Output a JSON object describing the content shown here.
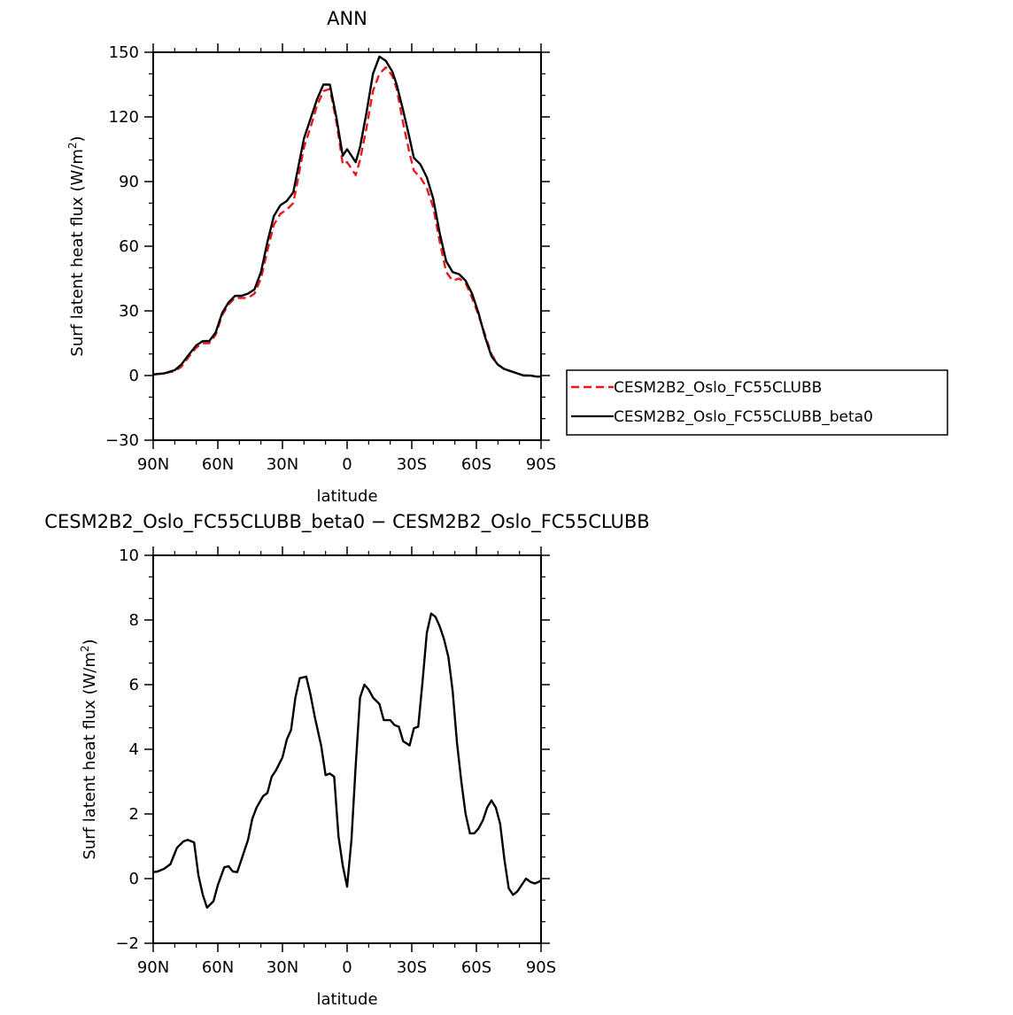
{
  "chart_data": [
    {
      "type": "line",
      "title": "ANN",
      "xlabel": "latitude",
      "ylabel": "Surf latent heat flux (W/m",
      "ylabel_sup": "2",
      "ylabel_close": ")",
      "xlim": [
        90,
        -90
      ],
      "ylim": [
        -30,
        150
      ],
      "yticks": [
        -30,
        0,
        30,
        60,
        90,
        120,
        150
      ],
      "ytick_labels": [
        "−30",
        "0",
        "30",
        "60",
        "90",
        "120",
        "150"
      ],
      "xticks": [
        90,
        60,
        30,
        0,
        -30,
        -60,
        -90
      ],
      "xtick_labels": [
        "90N",
        "60N",
        "30N",
        "0",
        "30S",
        "60S",
        "90S"
      ],
      "legend_position": "right",
      "series": [
        {
          "name": "CESM2B2_Oslo_FC55CLUBB",
          "color": "#e8191d",
          "dash": "dashed",
          "points": [
            [
              90,
              0.5
            ],
            [
              85,
              1
            ],
            [
              80,
              2
            ],
            [
              77,
              4
            ],
            [
              74,
              8
            ],
            [
              70,
              13
            ],
            [
              67,
              15
            ],
            [
              64,
              15
            ],
            [
              61,
              19
            ],
            [
              58,
              28
            ],
            [
              55,
              33
            ],
            [
              52,
              36
            ],
            [
              49,
              36
            ],
            [
              46,
              36
            ],
            [
              43,
              38
            ],
            [
              40,
              45
            ],
            [
              37,
              58
            ],
            [
              34,
              70
            ],
            [
              31,
              75
            ],
            [
              28,
              77
            ],
            [
              25,
              80
            ],
            [
              23,
              90
            ],
            [
              20,
              106
            ],
            [
              17,
              115
            ],
            [
              14,
              125
            ],
            [
              11,
              132
            ],
            [
              8,
              133
            ],
            [
              5,
              118
            ],
            [
              2,
              98
            ],
            [
              0,
              99
            ],
            [
              -2,
              96
            ],
            [
              -4,
              93
            ],
            [
              -6,
              100
            ],
            [
              -9,
              115
            ],
            [
              -12,
              132
            ],
            [
              -15,
              140
            ],
            [
              -18,
              143
            ],
            [
              -21,
              139
            ],
            [
              -23,
              133
            ],
            [
              -26,
              117
            ],
            [
              -29,
              103
            ],
            [
              -31,
              95
            ],
            [
              -34,
              92
            ],
            [
              -37,
              87
            ],
            [
              -40,
              78
            ],
            [
              -43,
              62
            ],
            [
              -46,
              48
            ],
            [
              -49,
              44
            ],
            [
              -52,
              45
            ],
            [
              -55,
              43
            ],
            [
              -58,
              36
            ],
            [
              -61,
              28
            ],
            [
              -64,
              19
            ],
            [
              -67,
              10
            ],
            [
              -70,
              5
            ],
            [
              -73,
              3
            ],
            [
              -76,
              2
            ],
            [
              -79,
              1
            ],
            [
              -82,
              0
            ],
            [
              -85,
              0
            ],
            [
              -88,
              -0.5
            ],
            [
              -90,
              -0.5
            ]
          ]
        },
        {
          "name": "CESM2B2_Oslo_FC55CLUBB_beta0",
          "color": "#000000",
          "dash": "solid",
          "points": [
            [
              90,
              0.5
            ],
            [
              85,
              1
            ],
            [
              80,
              2.5
            ],
            [
              77,
              5
            ],
            [
              74,
              9
            ],
            [
              70,
              14
            ],
            [
              67,
              16
            ],
            [
              64,
              16
            ],
            [
              61,
              20
            ],
            [
              58,
              29
            ],
            [
              55,
              34
            ],
            [
              52,
              37
            ],
            [
              49,
              37
            ],
            [
              46,
              38
            ],
            [
              43,
              40
            ],
            [
              40,
              48
            ],
            [
              37,
              62
            ],
            [
              34,
              74
            ],
            [
              31,
              79
            ],
            [
              28,
              81
            ],
            [
              25,
              85
            ],
            [
              23,
              95
            ],
            [
              20,
              110
            ],
            [
              17,
              119
            ],
            [
              14,
              128
            ],
            [
              11,
              135
            ],
            [
              8,
              135
            ],
            [
              5,
              120
            ],
            [
              2,
              102
            ],
            [
              0,
              105
            ],
            [
              -2,
              102
            ],
            [
              -4,
              99
            ],
            [
              -6,
              106
            ],
            [
              -9,
              122
            ],
            [
              -12,
              140
            ],
            [
              -15,
              148
            ],
            [
              -18,
              146
            ],
            [
              -21,
              141
            ],
            [
              -23,
              135
            ],
            [
              -26,
              123
            ],
            [
              -29,
              110
            ],
            [
              -31,
              101
            ],
            [
              -34,
              98
            ],
            [
              -37,
              92
            ],
            [
              -40,
              82
            ],
            [
              -43,
              66
            ],
            [
              -46,
              53
            ],
            [
              -49,
              48
            ],
            [
              -52,
              47
            ],
            [
              -55,
              44
            ],
            [
              -58,
              38
            ],
            [
              -61,
              29
            ],
            [
              -64,
              18
            ],
            [
              -67,
              9
            ],
            [
              -70,
              5
            ],
            [
              -73,
              3
            ],
            [
              -76,
              2
            ],
            [
              -79,
              1
            ],
            [
              -82,
              0
            ],
            [
              -85,
              0
            ],
            [
              -88,
              -0.5
            ],
            [
              -90,
              -0.5
            ]
          ]
        }
      ]
    },
    {
      "type": "line",
      "title": "CESM2B2_Oslo_FC55CLUBB_beta0 − CESM2B2_Oslo_FC55CLUBB",
      "xlabel": "latitude",
      "ylabel": "Surf latent heat flux (W/m",
      "ylabel_sup": "2",
      "ylabel_close": ")",
      "xlim": [
        90,
        -90
      ],
      "ylim": [
        -2,
        10
      ],
      "yticks": [
        -2,
        0,
        2,
        4,
        6,
        8,
        10
      ],
      "ytick_labels": [
        "−2",
        "0",
        "2",
        "4",
        "6",
        "8",
        "10"
      ],
      "xticks": [
        90,
        60,
        30,
        0,
        -30,
        -60,
        -90
      ],
      "xtick_labels": [
        "90N",
        "60N",
        "30N",
        "0",
        "30S",
        "60S",
        "90S"
      ],
      "series": [
        {
          "color": "#000000",
          "dash": "solid",
          "points": [
            [
              90,
              0.2
            ],
            [
              88,
              0.22
            ],
            [
              85,
              0.3
            ],
            [
              82,
              0.45
            ],
            [
              79,
              0.95
            ],
            [
              76,
              1.15
            ],
            [
              74,
              1.2
            ],
            [
              71,
              1.12
            ],
            [
              69,
              0.1
            ],
            [
              67,
              -0.5
            ],
            [
              65,
              -0.9
            ],
            [
              62,
              -0.7
            ],
            [
              60,
              -0.2
            ],
            [
              57,
              0.35
            ],
            [
              55,
              0.38
            ],
            [
              53,
              0.22
            ],
            [
              51,
              0.2
            ],
            [
              49,
              0.6
            ],
            [
              46,
              1.2
            ],
            [
              44,
              1.85
            ],
            [
              42,
              2.2
            ],
            [
              39,
              2.55
            ],
            [
              37,
              2.65
            ],
            [
              35,
              3.15
            ],
            [
              33,
              3.35
            ],
            [
              30,
              3.75
            ],
            [
              28,
              4.3
            ],
            [
              26,
              4.6
            ],
            [
              24,
              5.6
            ],
            [
              22,
              6.2
            ],
            [
              19,
              6.25
            ],
            [
              17,
              5.7
            ],
            [
              15,
              5.0
            ],
            [
              12,
              4.1
            ],
            [
              10,
              3.2
            ],
            [
              8,
              3.25
            ],
            [
              6,
              3.15
            ],
            [
              4,
              1.3
            ],
            [
              2,
              0.4
            ],
            [
              0,
              -0.25
            ],
            [
              -2,
              1.2
            ],
            [
              -4,
              3.5
            ],
            [
              -6,
              5.6
            ],
            [
              -8,
              6.0
            ],
            [
              -10,
              5.85
            ],
            [
              -12,
              5.6
            ],
            [
              -15,
              5.4
            ],
            [
              -17,
              4.9
            ],
            [
              -20,
              4.9
            ],
            [
              -22,
              4.75
            ],
            [
              -24,
              4.7
            ],
            [
              -26,
              4.25
            ],
            [
              -29,
              4.12
            ],
            [
              -31,
              4.65
            ],
            [
              -33,
              4.7
            ],
            [
              -35,
              6.1
            ],
            [
              -37,
              7.6
            ],
            [
              -39,
              8.2
            ],
            [
              -41,
              8.1
            ],
            [
              -43,
              7.8
            ],
            [
              -45,
              7.4
            ],
            [
              -47,
              6.85
            ],
            [
              -49,
              5.8
            ],
            [
              -51,
              4.2
            ],
            [
              -53,
              3.0
            ],
            [
              -55,
              2.0
            ],
            [
              -57,
              1.4
            ],
            [
              -59,
              1.4
            ],
            [
              -61,
              1.55
            ],
            [
              -63,
              1.8
            ],
            [
              -65,
              2.2
            ],
            [
              -67,
              2.42
            ],
            [
              -69,
              2.2
            ],
            [
              -71,
              1.7
            ],
            [
              -73,
              0.6
            ],
            [
              -75,
              -0.3
            ],
            [
              -77,
              -0.5
            ],
            [
              -79,
              -0.4
            ],
            [
              -81,
              -0.2
            ],
            [
              -83,
              0.0
            ],
            [
              -85,
              -0.1
            ],
            [
              -87,
              -0.15
            ],
            [
              -89,
              -0.1
            ],
            [
              -90,
              -0.05
            ]
          ]
        }
      ]
    }
  ]
}
